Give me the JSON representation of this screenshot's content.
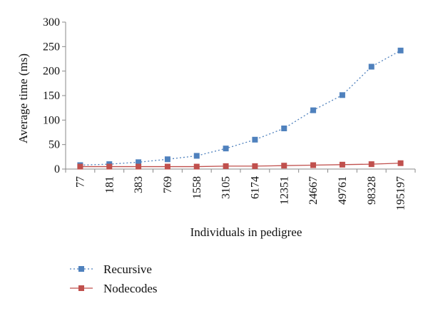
{
  "chart_data": {
    "type": "line",
    "title": "",
    "xlabel": "Individuals in pedigree",
    "ylabel": "Average time (ms)",
    "categories": [
      "77",
      "181",
      "383",
      "769",
      "1558",
      "3105",
      "6174",
      "12351",
      "24667",
      "49761",
      "98328",
      "195197"
    ],
    "ylim": [
      0,
      300
    ],
    "yticks": [
      "0",
      "50",
      "100",
      "150",
      "200",
      "250",
      "300"
    ],
    "grid": false,
    "legend_position": "bottom-left",
    "series": [
      {
        "name": "Recursive",
        "color": "#4f81bd",
        "line_style": "dotted",
        "marker": "square",
        "values": [
          8,
          10,
          14,
          20,
          27,
          42,
          60,
          83,
          120,
          151,
          209,
          242
        ]
      },
      {
        "name": "Nodecodes",
        "color": "#c0504d",
        "line_style": "solid",
        "marker": "square",
        "values": [
          5,
          5,
          5,
          5,
          5,
          6,
          6,
          7,
          8,
          9,
          10,
          12
        ]
      }
    ]
  }
}
